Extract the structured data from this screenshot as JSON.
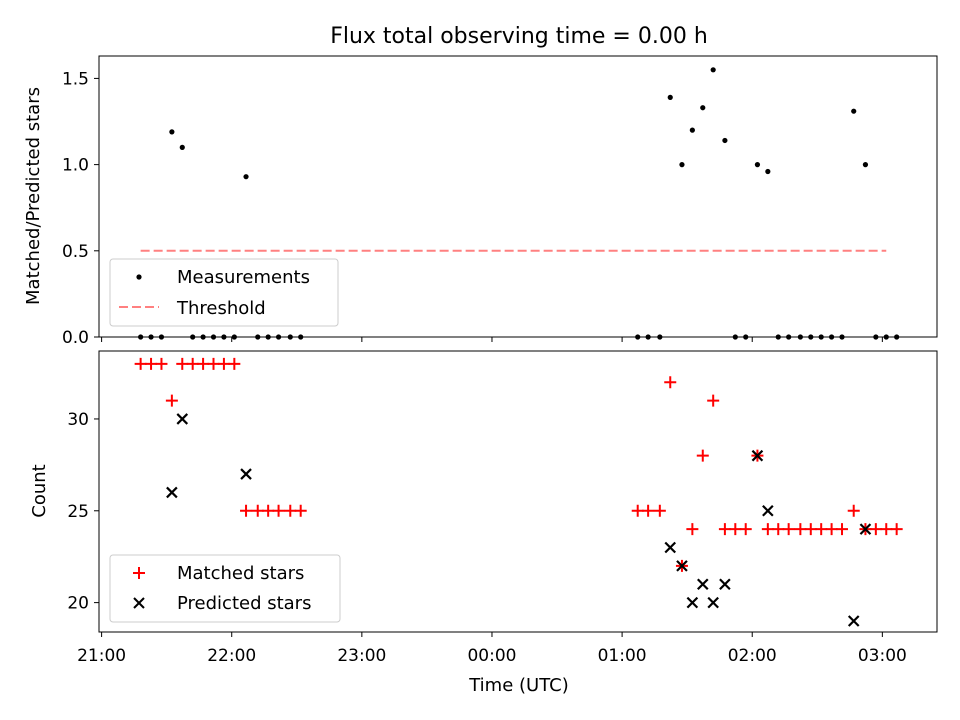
{
  "title": "Flux total observing time = 0.00 h",
  "chart_data": [
    {
      "type": "scatter",
      "ylabel": "Matched/Predicted stars",
      "ylim": [
        0,
        1.63
      ],
      "yticks": [
        "0.0",
        "0.5",
        "1.0",
        "1.5"
      ],
      "ytick_values": [
        0,
        0.5,
        1.0,
        1.5
      ],
      "xlim_hours": [
        20.98,
        27.42
      ],
      "xticks_hours": [
        21,
        22,
        23,
        24,
        25,
        26,
        27
      ],
      "legend": {
        "placement": "lower-left",
        "entries": [
          "Measurements",
          "Threshold"
        ]
      },
      "series": [
        {
          "name": "Measurements",
          "color": "#000000",
          "marker": "dot",
          "x": [
            21.3,
            21.38,
            21.46,
            21.54,
            21.62,
            21.7,
            21.78,
            21.86,
            21.94,
            22.02,
            22.11,
            22.2,
            22.28,
            22.36,
            22.45,
            22.53,
            25.12,
            25.2,
            25.29,
            25.37,
            25.46,
            25.54,
            25.62,
            25.7,
            25.79,
            25.87,
            25.95,
            26.04,
            26.12,
            26.2,
            26.28,
            26.37,
            26.45,
            26.53,
            26.61,
            26.69,
            26.78,
            26.87,
            26.95,
            27.03,
            27.11
          ],
          "y": [
            0,
            0,
            0,
            1.19,
            1.1,
            0,
            0,
            0,
            0,
            0,
            0.93,
            0,
            0,
            0,
            0,
            0,
            0,
            0,
            0,
            1.39,
            1.0,
            1.2,
            1.33,
            1.55,
            1.14,
            0,
            0,
            1.0,
            0.96,
            0,
            0,
            0,
            0,
            0,
            0,
            0,
            1.31,
            1.0,
            0,
            0,
            0
          ]
        },
        {
          "name": "Threshold",
          "color": "#ff8080",
          "style": "dashed",
          "x": [
            21.3,
            27.03
          ],
          "y": [
            0.5,
            0.5
          ]
        }
      ]
    },
    {
      "type": "scatter",
      "xlabel": "Time (UTC)",
      "ylabel": "Count",
      "ylim": [
        18.4,
        33.7
      ],
      "yticks": [
        "20",
        "25",
        "30"
      ],
      "ytick_values": [
        20,
        25,
        30
      ],
      "xlim_hours": [
        20.98,
        27.42
      ],
      "xticks": [
        "21:00",
        "22:00",
        "23:00",
        "00:00",
        "01:00",
        "02:00",
        "03:00"
      ],
      "xticks_hours": [
        21,
        22,
        23,
        24,
        25,
        26,
        27
      ],
      "legend": {
        "placement": "lower-left",
        "entries": [
          "Matched stars",
          "Predicted stars"
        ]
      },
      "series": [
        {
          "name": "Matched stars",
          "color": "#ff0000",
          "marker": "plus",
          "x": [
            21.3,
            21.38,
            21.46,
            21.54,
            21.62,
            21.7,
            21.78,
            21.86,
            21.94,
            22.02,
            22.11,
            22.2,
            22.28,
            22.36,
            22.45,
            22.53,
            25.12,
            25.2,
            25.29,
            25.37,
            25.46,
            25.54,
            25.62,
            25.7,
            25.79,
            25.87,
            25.95,
            26.04,
            26.12,
            26.2,
            26.28,
            26.37,
            26.45,
            26.53,
            26.61,
            26.69,
            26.78,
            26.87,
            26.95,
            27.03,
            27.11
          ],
          "y": [
            33,
            33,
            33,
            31,
            33,
            33,
            33,
            33,
            33,
            33,
            25,
            25,
            25,
            25,
            25,
            25,
            25,
            25,
            25,
            32,
            22,
            24,
            28,
            31,
            24,
            24,
            24,
            28,
            24,
            24,
            24,
            24,
            24,
            24,
            24,
            24,
            25,
            24,
            24,
            24,
            24
          ]
        },
        {
          "name": "Predicted stars",
          "color": "#000000",
          "marker": "x",
          "x": [
            21.54,
            21.62,
            22.11,
            25.37,
            25.46,
            25.54,
            25.62,
            25.7,
            25.79,
            26.04,
            26.12,
            26.78,
            26.87
          ],
          "y": [
            26,
            30,
            27,
            23,
            22,
            20,
            21,
            20,
            21,
            28,
            25,
            19,
            24
          ]
        }
      ]
    }
  ]
}
